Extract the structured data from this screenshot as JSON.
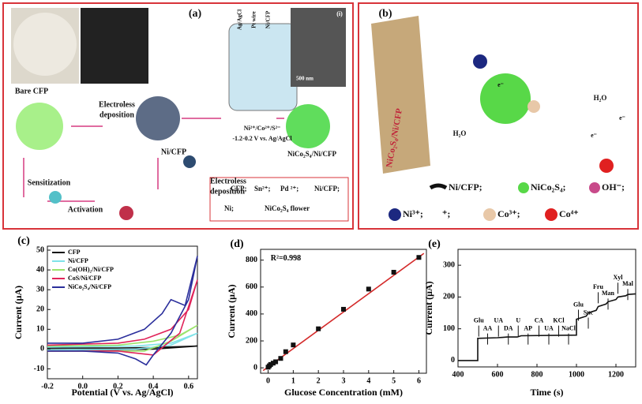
{
  "panels": {
    "a": {
      "texts": [
        "(a)",
        "Bare CFP",
        "Electroless",
        "deposition",
        "Ni/CFP",
        "Ni²⁺/Co²⁺/S²⁻",
        "-1.2-0.2 V vs. Ag/AgCl",
        "NiCo₂S₄/Ni/CFP",
        "Sensitization",
        "Activation",
        "Electroless",
        "deposition",
        "Ag/AgCl",
        "Pt wire",
        "Ni/CFP",
        "500 nm",
        "(i)",
        "CFP;",
        "Sn²⁺;",
        "Pd ²⁺;",
        "Ni/CFP;",
        "Ni;",
        "NiCo₂S₄ flower"
      ]
    },
    "b": {
      "texts": [
        "(b)",
        "NiCo₂S₄/Ni/CFP",
        "H₂O",
        "H₂O",
        "e⁻",
        "e⁻",
        "e⁻",
        "Ni/CFP;",
        "NiCo₂S₄;",
        "OH⁻;",
        "Ni³⁺;",
        "⁺;",
        "Co³⁺;",
        "Co⁴⁺"
      ]
    }
  },
  "chart_data": [
    {
      "type": "line",
      "label": "(c)",
      "xlabel": "Potential (V vs. Ag/AgCl)",
      "ylabel": "Current (μA)",
      "xlim": [
        -0.2,
        0.65
      ],
      "xticks": [
        -0.2,
        {
          "value": 0,
          "label": "0.0"
        },
        0.2,
        0.4,
        0.6
      ],
      "ylim": [
        -15,
        52
      ],
      "yticks": [
        -10,
        0,
        10,
        20,
        30,
        40,
        50
      ],
      "legend": "upper left",
      "series": [
        {
          "name": "CFP",
          "color": "#111111",
          "x": [
            -0.2,
            0.2,
            0.4,
            0.65,
            0.4,
            0.2,
            -0.2
          ],
          "values": [
            0.5,
            0.5,
            0.8,
            1.5,
            0,
            -0.3,
            -0.3
          ]
        },
        {
          "name": "Ni/CFP",
          "color": "#7fe3e8",
          "x": [
            -0.2,
            0.3,
            0.5,
            0.65,
            0.5,
            0.3,
            -0.2
          ],
          "values": [
            1,
            1.5,
            3,
            8,
            2,
            0,
            -0.5
          ]
        },
        {
          "name": "Co(OH)₂/Ni/CFP",
          "color": "#9be36b",
          "x": [
            -0.2,
            0.2,
            0.4,
            0.55,
            0.65,
            0.5,
            0.35,
            0.2,
            -0.2
          ],
          "values": [
            1.5,
            2,
            4,
            7,
            12,
            4,
            -1,
            -1,
            -1
          ]
        },
        {
          "name": "CoS/Ni/CFP",
          "color": "#e0245a",
          "x": [
            -0.2,
            0,
            0.2,
            0.35,
            0.5,
            0.6,
            0.65,
            0.55,
            0.4,
            0.3,
            0.2,
            0,
            -0.2
          ],
          "values": [
            2,
            2.5,
            3,
            5,
            10,
            20,
            35,
            8,
            -3,
            -2,
            -1,
            -1,
            -1
          ]
        },
        {
          "name": "NiCo₂S₄/Ni/CFP",
          "color": "#2b2f9c",
          "x": [
            -0.2,
            0,
            0.2,
            0.35,
            0.45,
            0.5,
            0.58,
            0.65,
            0.6,
            0.5,
            0.4,
            0.36,
            0.3,
            0.2,
            0,
            -0.2
          ],
          "values": [
            3,
            3,
            5,
            10,
            18,
            25,
            22,
            47,
            25,
            8,
            -3,
            -8,
            -5,
            -2,
            -1,
            -1
          ]
        }
      ]
    },
    {
      "type": "scatter",
      "label": "(d)",
      "xlabel": "Glucose Concentration (mM)",
      "ylabel": "Current  (μA)",
      "xlim": [
        -0.3,
        6.3
      ],
      "xticks": [
        0,
        1,
        2,
        3,
        4,
        5,
        6
      ],
      "ylim": [
        -40,
        880
      ],
      "yticks": [
        0,
        200,
        400,
        600,
        800
      ],
      "annotations": [
        {
          "text": "R²=0.998",
          "x": 0.1,
          "y": 810
        }
      ],
      "series": [
        {
          "mode": "line",
          "color": "#d42a2a",
          "x": [
            -0.2,
            6.2
          ],
          "values": [
            -20,
            850
          ]
        },
        {
          "mode": "markers",
          "color": "#111111",
          "x": [
            0,
            0.05,
            0.1,
            0.2,
            0.3,
            0.5,
            0.7,
            1,
            2,
            3,
            4,
            5,
            6
          ],
          "values": [
            5,
            15,
            25,
            35,
            45,
            70,
            120,
            170,
            290,
            435,
            585,
            710,
            820
          ]
        }
      ]
    },
    {
      "type": "line",
      "label": "(e)",
      "xlabel": "Time (s)",
      "ylabel": "Current (μA)",
      "xlim": [
        400,
        1300
      ],
      "xticks": [
        400,
        600,
        800,
        1000,
        1200
      ],
      "ylim": [
        -20,
        350
      ],
      "yticks": [
        0,
        100,
        200,
        300
      ],
      "annotations": [
        {
          "text": "Glu",
          "x": 505,
          "y": 125
        },
        {
          "text": "AA",
          "x": 550,
          "y": 100
        },
        {
          "text": "UA",
          "x": 605,
          "y": 125
        },
        {
          "text": "DA",
          "x": 655,
          "y": 100
        },
        {
          "text": "U",
          "x": 705,
          "y": 125
        },
        {
          "text": "AP",
          "x": 755,
          "y": 100
        },
        {
          "text": "CA",
          "x": 810,
          "y": 125
        },
        {
          "text": "UA",
          "x": 860,
          "y": 100
        },
        {
          "text": "KCl",
          "x": 910,
          "y": 125
        },
        {
          "text": "NaCl",
          "x": 960,
          "y": 100
        },
        {
          "text": "Glu",
          "x": 1010,
          "y": 175
        },
        {
          "text": "Suc",
          "x": 1060,
          "y": 150
        },
        {
          "text": "Fru",
          "x": 1110,
          "y": 230
        },
        {
          "text": "Man",
          "x": 1160,
          "y": 210
        },
        {
          "text": "Xyl",
          "x": 1210,
          "y": 260
        },
        {
          "text": "Mal",
          "x": 1260,
          "y": 240
        }
      ],
      "series": [
        {
          "mode": "line",
          "color": "#111111",
          "x": [
            400,
            500,
            500,
            600,
            650,
            700,
            720,
            1000,
            1000,
            1050,
            1060,
            1100,
            1110,
            1150,
            1160,
            1200,
            1210,
            1250,
            1260,
            1300
          ],
          "values": [
            0,
            0,
            70,
            72,
            74,
            74,
            78,
            80,
            130,
            140,
            150,
            158,
            170,
            178,
            185,
            192,
            200,
            204,
            208,
            210
          ]
        }
      ]
    }
  ]
}
